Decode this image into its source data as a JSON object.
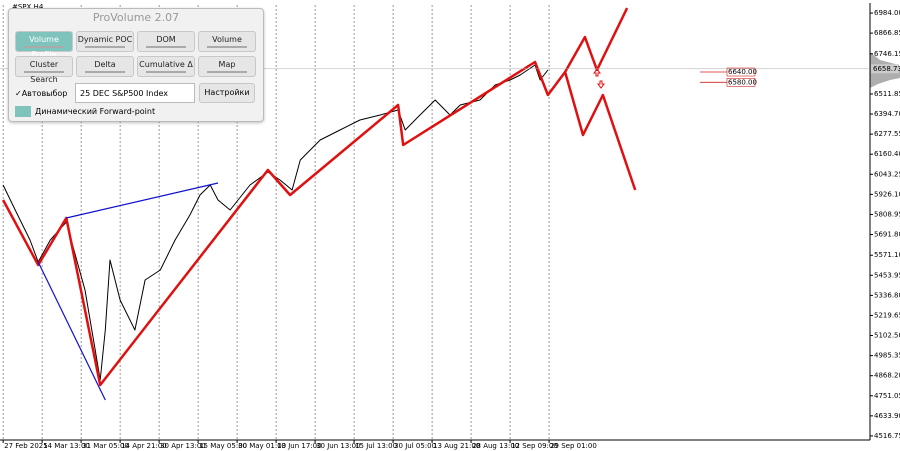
{
  "chart_data": {
    "type": "line",
    "symbol": "#SPX,H4",
    "xlim": [
      -0.08,
      22.23
    ],
    "ylim": [
      4493,
      7031
    ],
    "xticks": [
      {
        "value": 0,
        "label": "27 Feb 2025"
      },
      {
        "value": 1,
        "label": "14 Mar 13:00"
      },
      {
        "value": 2,
        "label": "31 Mar 05:00"
      },
      {
        "value": 3,
        "label": "14 Apr 21:00"
      },
      {
        "value": 4,
        "label": "30 Apr 13:00"
      },
      {
        "value": 5,
        "label": "15 May 05:00"
      },
      {
        "value": 6,
        "label": "30 May 01:00"
      },
      {
        "value": 7,
        "label": "13 Jun 17:00"
      },
      {
        "value": 8,
        "label": "30 Jun 13:00"
      },
      {
        "value": 9,
        "label": "15 Jul 13:00"
      },
      {
        "value": 10,
        "label": "30 Jul 05:00"
      },
      {
        "value": 11,
        "label": "13 Aug 21:00"
      },
      {
        "value": 12,
        "label": "28 Aug 13:00"
      },
      {
        "value": 13,
        "label": "12 Sep 09:00"
      },
      {
        "value": 14,
        "label": "29 Sep 01:00"
      }
    ],
    "yticks": [
      {
        "value": 6984,
        "label": "6984.00"
      },
      {
        "value": 6866.85,
        "label": "6866.85"
      },
      {
        "value": 6746.15,
        "label": "6746.15"
      },
      {
        "value": 6511.85,
        "label": "6511.85"
      },
      {
        "value": 6394.7,
        "label": "6394.70"
      },
      {
        "value": 6277.55,
        "label": "6277.55"
      },
      {
        "value": 6160.4,
        "label": "6160.40"
      },
      {
        "value": 6043.25,
        "label": "6043.25"
      },
      {
        "value": 5926.1,
        "label": "5926.10"
      },
      {
        "value": 5808.95,
        "label": "5808.95"
      },
      {
        "value": 5691.8,
        "label": "5691.80"
      },
      {
        "value": 5571.1,
        "label": "5571.10"
      },
      {
        "value": 5453.95,
        "label": "5453.95"
      },
      {
        "value": 5336.8,
        "label": "5336.80"
      },
      {
        "value": 5219.65,
        "label": "5219.65"
      },
      {
        "value": 5102.5,
        "label": "5102.50"
      },
      {
        "value": 4985.35,
        "label": "4985.35"
      },
      {
        "value": 4868.2,
        "label": "4868.20"
      },
      {
        "value": 4751.05,
        "label": "4751.05"
      },
      {
        "value": 4633.9,
        "label": "4633.90"
      },
      {
        "value": 4516.75,
        "label": "4516.75"
      }
    ],
    "grid": true,
    "current_price": {
      "value": 6658.73,
      "label": "6658.73"
    },
    "levels": [
      {
        "value": 6640,
        "label": "6640.00",
        "color": "#d42020"
      },
      {
        "value": 6580,
        "label": "6580.00",
        "color": "#d42020"
      }
    ],
    "series": [
      {
        "color": "#000000",
        "width": 1,
        "x": [
          0,
          0.31,
          0.69,
          0.9,
          1.21,
          1.62,
          1.85,
          2.1,
          2.36,
          2.49,
          2.62,
          2.74,
          3.0,
          3.38,
          3.64,
          4.03,
          4.41,
          4.79,
          5.05,
          5.31,
          5.51,
          5.82,
          6.33,
          6.79,
          7.1,
          7.41,
          7.62,
          8.13,
          8.64,
          9.15,
          9.67,
          10.13,
          10.31,
          10.69,
          11.08,
          11.46,
          11.72,
          12.23,
          12.62,
          13.0,
          13.26,
          13.64,
          13.77,
          13.97
        ],
        "values": [
          5980.7,
          5834.9,
          5659.9,
          5531.6,
          5659.9,
          5764.9,
          5572.4,
          5368.3,
          5018.3,
          4843.3,
          5134.9,
          5543.2,
          5309.9,
          5134.9,
          5426.6,
          5484.9,
          5659.9,
          5805.7,
          5922.4,
          5980.7,
          5893.2,
          5834.9,
          5980.7,
          6056.6,
          6009.9,
          5951.6,
          6126.5,
          6243.2,
          6301.5,
          6359.9,
          6389.0,
          6418.2,
          6301.5,
          6389.0,
          6476.5,
          6389.0,
          6447.4,
          6476.5,
          6564.0,
          6593.2,
          6622.4,
          6680.7,
          6593.2,
          6651.5
        ]
      },
      {
        "color": "#e01010",
        "width": 2.5,
        "x": [
          0,
          0.9,
          1.62,
          2.49,
          6.79,
          7.36,
          10.13,
          10.26,
          13.64,
          13.97,
          14.41,
          14.92,
          15.23,
          16.0
        ],
        "values": [
          5893.2,
          5514.1,
          5788.2,
          4814.1,
          6068.2,
          5922.4,
          6447.4,
          6214.0,
          6698.2,
          6505.7,
          6639.9,
          6844.0,
          6651.5,
          7013.2
        ]
      },
      {
        "color": "#e01010",
        "width": 2.5,
        "x": [
          14.41,
          14.87,
          15.38,
          16.21
        ],
        "values": [
          6639.9,
          6272.4,
          6505.7,
          5951.6
        ]
      },
      {
        "color": "#1010d0",
        "width": 1.2,
        "x": [
          0.9,
          2.62
        ],
        "values": [
          5531.6,
          4726.6
        ]
      },
      {
        "color": "#1010d0",
        "width": 1.2,
        "x": [
          1.62,
          5.51
        ],
        "values": [
          5788.2,
          5992.4
        ]
      }
    ]
  },
  "panel": {
    "title": "ProVolume 2.07",
    "buttons": [
      "Volume Profile",
      "Dynamic POC",
      "DOM",
      "Volume",
      "Cluster Search",
      "Delta",
      "Cumulative Δ",
      "Map"
    ],
    "checkbox": "Автовыбор",
    "instrument": "25 DEC S&P500 Index",
    "settings": "Настройки",
    "forward_point": "Динамический Forward-point"
  }
}
